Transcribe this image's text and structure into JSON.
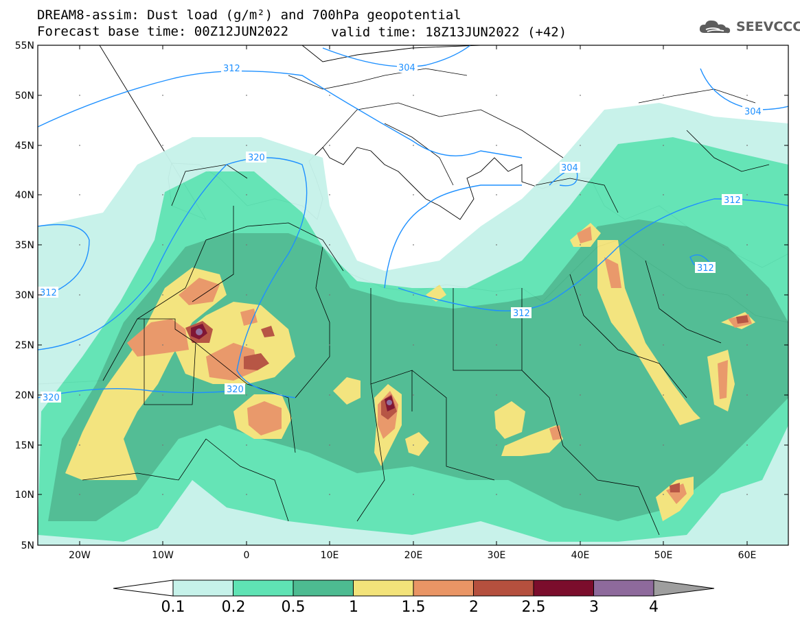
{
  "header": {
    "line1": "DREAM8-assim: Dust load (g/m²) and 700hPa geopotential",
    "line2_left": "Forecast base time: 00Z12JUN2022",
    "line2_right": "valid time: 18Z13JUN2022 (+42)",
    "logo_text": "SEEVCCC"
  },
  "map": {
    "lat_labels": [
      "55N",
      "50N",
      "45N",
      "40N",
      "35N",
      "30N",
      "25N",
      "20N",
      "15N",
      "10N",
      "5N"
    ],
    "lon_labels": [
      "20W",
      "10W",
      "0",
      "10E",
      "20E",
      "30E",
      "40E",
      "50E",
      "60E"
    ],
    "contour_labels": [
      "312",
      "304",
      "320",
      "304",
      "312",
      "312",
      "312",
      "312",
      "320",
      "320",
      "304"
    ]
  },
  "colorbar": {
    "colors": [
      "#c6f2ea",
      "#5fe3b4",
      "#4dbb91",
      "#f3e37a",
      "#e99565",
      "#b5503e",
      "#7b0d2c",
      "#8e6a9c",
      "#9e9e9e"
    ],
    "tick_labels": [
      "0.1",
      "0.2",
      "0.5",
      "1",
      "1.5",
      "2",
      "2.5",
      "3",
      "4"
    ]
  },
  "colors": {
    "contour": "#1e90ff",
    "ocean": "#ffffff",
    "border": "#000000"
  }
}
